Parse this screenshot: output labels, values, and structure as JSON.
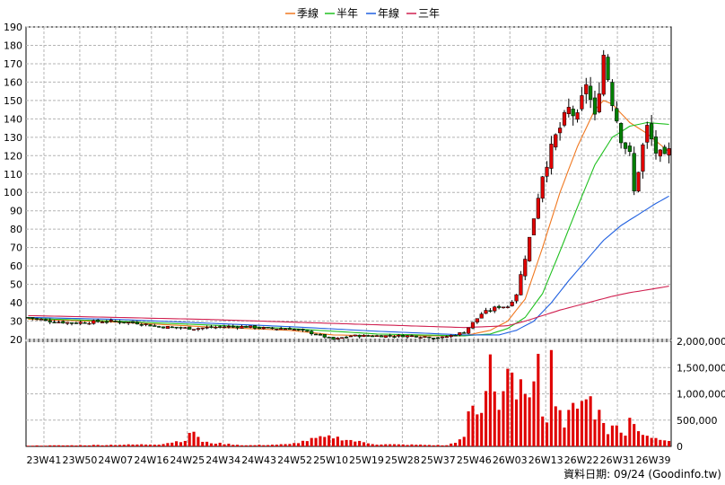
{
  "legend": [
    {
      "label": "季線",
      "color": "#f07820"
    },
    {
      "label": "半年",
      "color": "#20c020"
    },
    {
      "label": "年線",
      "color": "#2060e0"
    },
    {
      "label": "三年",
      "color": "#d02050"
    }
  ],
  "credit": "資料日期: 09/24  (Goodinfo.tw)",
  "chart_data": {
    "type": "candlestick",
    "price_axis": {
      "min": 20,
      "max": 190,
      "ticks": [
        20,
        30,
        40,
        50,
        60,
        70,
        80,
        90,
        100,
        110,
        120,
        130,
        140,
        150,
        160,
        170,
        180,
        190
      ]
    },
    "volume_axis": {
      "min": 0,
      "max": 2000000,
      "ticks": [
        0,
        500000,
        1000000,
        1500000,
        2000000
      ],
      "tick_labels": [
        "0",
        "500,000",
        "1,000,000",
        "1,500,000",
        "2,000,000"
      ]
    },
    "x_tick_labels": [
      "23W41",
      "23W50",
      "24W07",
      "24W16",
      "24W25",
      "24W34",
      "24W43",
      "24W52",
      "25W10",
      "25W19",
      "25W28",
      "25W37",
      "25W46",
      "26W03",
      "26W13",
      "26W22",
      "26W31",
      "26W39"
    ],
    "grid": true,
    "legend_position": "top-center",
    "close_anchors": [
      [
        0,
        32
      ],
      [
        5,
        30
      ],
      [
        10,
        29
      ],
      [
        18,
        30
      ],
      [
        25,
        29
      ],
      [
        30,
        27
      ],
      [
        38,
        26
      ],
      [
        45,
        27
      ],
      [
        50,
        27
      ],
      [
        55,
        26
      ],
      [
        60,
        26
      ],
      [
        66,
        23
      ],
      [
        70,
        20
      ],
      [
        74,
        22
      ],
      [
        80,
        22
      ],
      [
        88,
        22
      ],
      [
        95,
        21
      ],
      [
        100,
        24
      ],
      [
        104,
        34
      ],
      [
        108,
        38
      ],
      [
        110,
        38
      ],
      [
        112,
        45
      ],
      [
        115,
        75
      ],
      [
        118,
        110
      ],
      [
        121,
        130
      ],
      [
        124,
        145
      ],
      [
        126,
        140
      ],
      [
        128,
        160
      ],
      [
        130,
        140
      ],
      [
        132,
        175
      ],
      [
        134,
        150
      ],
      [
        136,
        130
      ],
      [
        138,
        120
      ],
      [
        139,
        100
      ],
      [
        141,
        125
      ],
      [
        142,
        135
      ],
      [
        144,
        122
      ],
      [
        146,
        118
      ],
      [
        147,
        122
      ]
    ],
    "volume_anchors": [
      [
        0,
        15000
      ],
      [
        10,
        20000
      ],
      [
        20,
        30000
      ],
      [
        30,
        40000
      ],
      [
        36,
        120000
      ],
      [
        38,
        300000
      ],
      [
        40,
        80000
      ],
      [
        50,
        20000
      ],
      [
        60,
        40000
      ],
      [
        66,
        150000
      ],
      [
        70,
        180000
      ],
      [
        75,
        100000
      ],
      [
        80,
        40000
      ],
      [
        90,
        30000
      ],
      [
        96,
        20000
      ],
      [
        100,
        150000
      ],
      [
        101,
        700000
      ],
      [
        104,
        600000
      ],
      [
        106,
        1800000
      ],
      [
        108,
        700000
      ],
      [
        110,
        1500000
      ],
      [
        112,
        800000
      ],
      [
        114,
        1300000
      ],
      [
        115,
        800000
      ],
      [
        116,
        1000000
      ],
      [
        117,
        2100000
      ],
      [
        118,
        700000
      ],
      [
        119,
        600000
      ],
      [
        120,
        1600000
      ],
      [
        121,
        1000000
      ],
      [
        123,
        400000
      ],
      [
        126,
        900000
      ],
      [
        128,
        1000000
      ],
      [
        129,
        900000
      ],
      [
        130,
        500000
      ],
      [
        131,
        700000
      ],
      [
        133,
        300000
      ],
      [
        135,
        400000
      ],
      [
        137,
        200000
      ],
      [
        138,
        500000
      ],
      [
        141,
        250000
      ],
      [
        144,
        150000
      ],
      [
        146,
        150000
      ],
      [
        147,
        120000
      ]
    ],
    "series": [
      {
        "name": "季線",
        "anchors": [
          [
            0,
            31
          ],
          [
            20,
            29.5
          ],
          [
            40,
            27
          ],
          [
            60,
            25
          ],
          [
            70,
            22.5
          ],
          [
            80,
            22
          ],
          [
            100,
            22
          ],
          [
            106,
            25
          ],
          [
            110,
            30
          ],
          [
            114,
            42
          ],
          [
            118,
            70
          ],
          [
            122,
            100
          ],
          [
            126,
            125
          ],
          [
            130,
            145
          ],
          [
            132,
            150
          ],
          [
            134,
            148
          ],
          [
            138,
            138
          ],
          [
            142,
            132
          ],
          [
            147,
            122
          ]
        ]
      },
      {
        "name": "半年",
        "anchors": [
          [
            0,
            31.5
          ],
          [
            20,
            30
          ],
          [
            40,
            28
          ],
          [
            60,
            26
          ],
          [
            80,
            23
          ],
          [
            100,
            22
          ],
          [
            106,
            23
          ],
          [
            110,
            26
          ],
          [
            114,
            32
          ],
          [
            118,
            45
          ],
          [
            122,
            68
          ],
          [
            126,
            92
          ],
          [
            130,
            115
          ],
          [
            134,
            130
          ],
          [
            138,
            136
          ],
          [
            142,
            138
          ],
          [
            147,
            137
          ]
        ]
      },
      {
        "name": "年線",
        "anchors": [
          [
            0,
            32
          ],
          [
            20,
            31
          ],
          [
            40,
            29
          ],
          [
            60,
            27
          ],
          [
            80,
            24.5
          ],
          [
            100,
            22.5
          ],
          [
            108,
            22.5
          ],
          [
            112,
            25
          ],
          [
            116,
            30
          ],
          [
            120,
            40
          ],
          [
            124,
            52
          ],
          [
            128,
            63
          ],
          [
            132,
            74
          ],
          [
            136,
            82
          ],
          [
            140,
            88
          ],
          [
            144,
            94
          ],
          [
            147,
            98
          ]
        ]
      },
      {
        "name": "三年",
        "anchors": [
          [
            0,
            33
          ],
          [
            20,
            32
          ],
          [
            40,
            31
          ],
          [
            60,
            29.5
          ],
          [
            80,
            28
          ],
          [
            100,
            26.5
          ],
          [
            110,
            27.5
          ],
          [
            114,
            30
          ],
          [
            118,
            33
          ],
          [
            122,
            36
          ],
          [
            126,
            38.5
          ],
          [
            130,
            41
          ],
          [
            134,
            43.5
          ],
          [
            138,
            45.5
          ],
          [
            142,
            47
          ],
          [
            147,
            49
          ]
        ]
      }
    ]
  }
}
